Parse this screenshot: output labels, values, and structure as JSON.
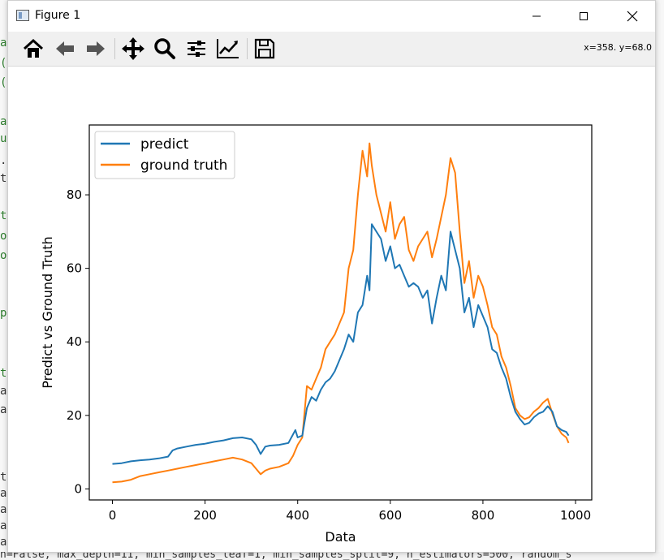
{
  "window": {
    "title": "Figure 1",
    "coords_readout": "x=358. y=68.0"
  },
  "toolbar": {
    "tools": [
      {
        "name": "home-icon"
      },
      {
        "name": "back-arrow-icon"
      },
      {
        "name": "forward-arrow-icon"
      },
      {
        "name": "pan-icon"
      },
      {
        "name": "zoom-icon"
      },
      {
        "name": "subplots-config-icon"
      },
      {
        "name": "edit-axis-icon"
      },
      {
        "name": "save-icon"
      }
    ]
  },
  "background": {
    "left_chars": [
      "a",
      "(",
      "(",
      "a",
      "u",
      ".",
      "t",
      "t",
      "o",
      "o",
      "p",
      "t",
      "a",
      "a",
      "t",
      "a",
      "a",
      "a",
      "a"
    ],
    "bottom_text": "n=False, max_depth=11, min_samples_leaf=1, min_samples_split=9, n_estimators=500, random_s"
  },
  "chart_data": {
    "type": "line",
    "title": "",
    "xlabel": "Data",
    "ylabel": "Predict vs Ground Truth",
    "xlim": [
      -50,
      1035
    ],
    "ylim": [
      -3,
      99
    ],
    "xticks": [
      0,
      200,
      400,
      600,
      800,
      1000
    ],
    "yticks": [
      0,
      20,
      40,
      60,
      80
    ],
    "legend_position": "top-left",
    "series": [
      {
        "name": "predict",
        "color": "#1f77b4",
        "x": [
          0,
          20,
          40,
          60,
          80,
          100,
          120,
          130,
          140,
          160,
          180,
          200,
          220,
          240,
          260,
          280,
          300,
          310,
          320,
          330,
          340,
          360,
          380,
          395,
          400,
          410,
          420,
          430,
          440,
          450,
          460,
          470,
          480,
          490,
          500,
          510,
          520,
          530,
          540,
          550,
          555,
          560,
          570,
          580,
          590,
          600,
          610,
          620,
          630,
          640,
          650,
          660,
          670,
          680,
          690,
          700,
          710,
          720,
          730,
          740,
          750,
          760,
          770,
          780,
          790,
          800,
          810,
          820,
          830,
          840,
          850,
          860,
          870,
          880,
          890,
          900,
          910,
          920,
          930,
          940,
          950,
          960,
          970,
          980,
          985
        ],
        "values": [
          6.8,
          7.0,
          7.5,
          7.8,
          8.0,
          8.3,
          8.8,
          10.5,
          11.0,
          11.5,
          12.0,
          12.3,
          12.8,
          13.2,
          13.8,
          14.0,
          13.5,
          12.0,
          9.5,
          11.5,
          11.8,
          12.0,
          12.5,
          16.0,
          14.0,
          14.5,
          22.0,
          25.0,
          24.0,
          27.0,
          29.0,
          30.0,
          32.0,
          35.0,
          38.0,
          42.0,
          40.0,
          48.0,
          50.0,
          58.0,
          54.0,
          72.0,
          70.0,
          68.0,
          62.0,
          66.0,
          60.0,
          61.0,
          58.0,
          55.0,
          56.0,
          55.0,
          52.0,
          54.0,
          45.0,
          52.0,
          58.0,
          54.0,
          70.0,
          65.0,
          60.0,
          48.0,
          52.0,
          44.0,
          50.0,
          47.0,
          44.0,
          38.0,
          37.0,
          33.0,
          30.0,
          25.0,
          21.0,
          19.0,
          17.5,
          18.0,
          19.5,
          20.5,
          21.0,
          22.5,
          21.0,
          17.0,
          16.0,
          15.5,
          14.5
        ]
      },
      {
        "name": "ground truth",
        "color": "#ff7f0e",
        "x": [
          0,
          20,
          40,
          60,
          80,
          100,
          120,
          140,
          160,
          180,
          200,
          220,
          240,
          260,
          280,
          300,
          310,
          320,
          330,
          340,
          360,
          380,
          390,
          400,
          405,
          410,
          420,
          430,
          440,
          450,
          460,
          470,
          480,
          490,
          500,
          510,
          520,
          530,
          540,
          550,
          555,
          560,
          570,
          580,
          590,
          600,
          610,
          620,
          630,
          640,
          650,
          660,
          670,
          680,
          690,
          700,
          710,
          720,
          730,
          740,
          750,
          760,
          770,
          780,
          790,
          800,
          810,
          820,
          830,
          840,
          850,
          860,
          870,
          880,
          890,
          900,
          910,
          920,
          930,
          940,
          950,
          960,
          970,
          980,
          985
        ],
        "values": [
          1.8,
          2.0,
          2.5,
          3.5,
          4.0,
          4.5,
          5.0,
          5.5,
          6.0,
          6.5,
          7.0,
          7.5,
          8.0,
          8.5,
          8.0,
          7.0,
          5.5,
          4.0,
          5.0,
          5.5,
          6.0,
          7.0,
          9.0,
          12.0,
          13.0,
          14.0,
          28.0,
          27.0,
          30.0,
          33.0,
          38.0,
          40.0,
          42.0,
          45.0,
          48.0,
          60.0,
          65.0,
          80.0,
          92.0,
          85.0,
          94.0,
          88.0,
          80.0,
          75.0,
          70.0,
          78.0,
          68.0,
          72.0,
          74.0,
          65.0,
          62.0,
          66.0,
          68.0,
          70.0,
          63.0,
          68.0,
          74.0,
          80.0,
          90.0,
          86.0,
          70.0,
          56.0,
          62.0,
          52.0,
          58.0,
          55.0,
          50.0,
          44.0,
          42.0,
          36.0,
          33.0,
          28.0,
          22.0,
          20.0,
          19.0,
          19.5,
          21.0,
          22.0,
          23.5,
          24.5,
          20.5,
          17.0,
          15.0,
          14.0,
          12.5
        ]
      }
    ]
  }
}
